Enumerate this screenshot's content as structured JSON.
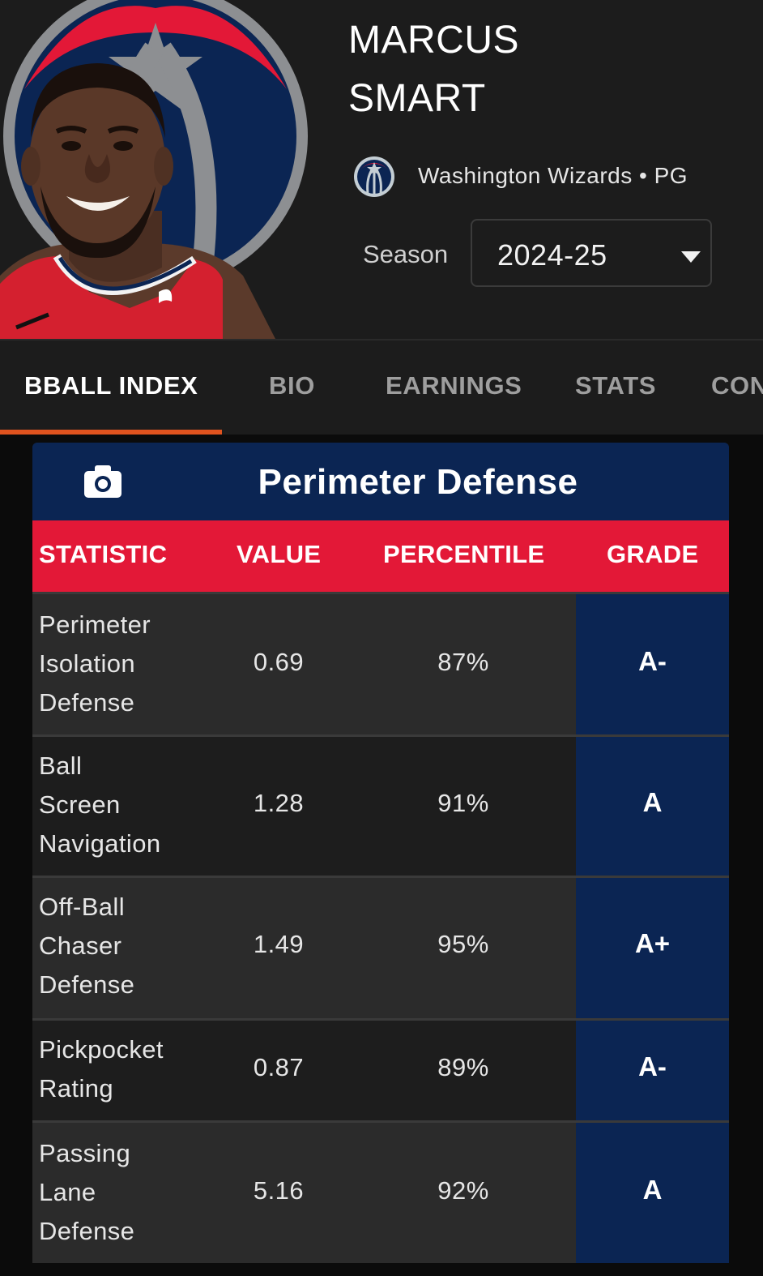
{
  "player": {
    "first_name": "MARCUS",
    "last_name": "SMART",
    "team_position": "Washington Wizards • PG"
  },
  "season": {
    "label": "Season",
    "value": "2024-25"
  },
  "tabs": [
    {
      "label": "BBALL INDEX",
      "active": true
    },
    {
      "label": "BIO"
    },
    {
      "label": "EARNINGS"
    },
    {
      "label": "STATS"
    },
    {
      "label": "CON"
    }
  ],
  "card": {
    "title": "Perimeter Defense",
    "columns": [
      "STATISTIC",
      "VALUE",
      "PERCENTILE",
      "GRADE"
    ],
    "rows": [
      {
        "statistic": [
          "Perimeter",
          "Isolation",
          "Defense"
        ],
        "value": "0.69",
        "percentile": "87%",
        "grade": "A-"
      },
      {
        "statistic": [
          "Ball",
          "Screen",
          "Navigation"
        ],
        "value": "1.28",
        "percentile": "91%",
        "grade": "A"
      },
      {
        "statistic": [
          "Off-Ball",
          "Chaser",
          "Defense"
        ],
        "value": "1.49",
        "percentile": "95%",
        "grade": "A+"
      },
      {
        "statistic": [
          "Pickpocket",
          "Rating"
        ],
        "value": "0.87",
        "percentile": "89%",
        "grade": "A-"
      },
      {
        "statistic": [
          "Passing",
          "Lane",
          "Defense"
        ],
        "value": "5.16",
        "percentile": "92%",
        "grade": "A"
      }
    ]
  },
  "colors": {
    "header_bg": "#1c1c1c",
    "accent_underline": "#e0531f",
    "wizards_navy": "#0b2553",
    "wizards_red": "#e31837"
  },
  "icons": {
    "camera": "camera-icon",
    "dropdown": "caret-down-icon",
    "team": "wizards-logo-icon"
  }
}
